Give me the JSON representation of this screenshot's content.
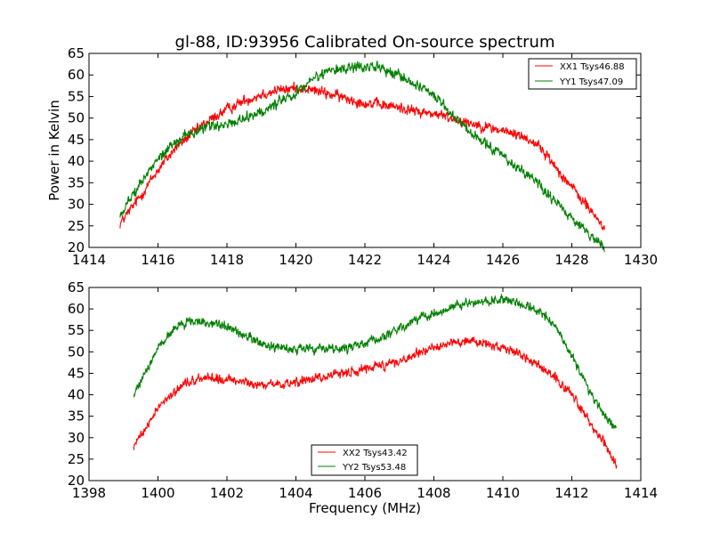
{
  "chart_data": [
    {
      "type": "line",
      "title": "gl-88, ID:93956 Calibrated On-source spectrum",
      "xlabel": "",
      "ylabel": "Power in Kelvin",
      "xlim": [
        1414,
        1430
      ],
      "ylim": [
        20,
        65
      ],
      "xticks": [
        1414,
        1416,
        1418,
        1420,
        1422,
        1424,
        1426,
        1428,
        1430
      ],
      "yticks": [
        20,
        25,
        30,
        35,
        40,
        45,
        50,
        55,
        60,
        65
      ],
      "legend": "top-right",
      "noise": 0.9,
      "series": [
        {
          "name": "XX1 Tsys46.88",
          "color": "#ff0000",
          "x": [
            1414.9,
            1415.5,
            1416.0,
            1416.5,
            1417.0,
            1417.5,
            1418.0,
            1418.5,
            1419.0,
            1419.5,
            1420.0,
            1420.5,
            1421.0,
            1421.5,
            1422.0,
            1422.5,
            1423.0,
            1423.5,
            1424.0,
            1424.5,
            1425.0,
            1425.5,
            1426.0,
            1426.5,
            1427.0,
            1427.5,
            1428.0,
            1428.5,
            1428.95
          ],
          "y": [
            25.5,
            32,
            38,
            43,
            46.5,
            49.5,
            52,
            54,
            55.5,
            56.5,
            57,
            56.5,
            55.5,
            54.5,
            53.5,
            53,
            52.5,
            51.5,
            51,
            50,
            49,
            48,
            47,
            46,
            44,
            39,
            34,
            29,
            24.5
          ]
        },
        {
          "name": "YY1 Tsys47.09",
          "color": "#008000",
          "x": [
            1414.9,
            1415.5,
            1416.0,
            1416.5,
            1417.0,
            1417.5,
            1418.0,
            1418.5,
            1419.0,
            1419.5,
            1420.0,
            1420.5,
            1421.0,
            1421.5,
            1422.0,
            1422.5,
            1423.0,
            1423.5,
            1424.0,
            1424.5,
            1425.0,
            1425.5,
            1426.0,
            1426.5,
            1427.0,
            1427.5,
            1428.0,
            1428.5,
            1428.95
          ],
          "y": [
            27.5,
            35,
            40.5,
            44.5,
            47,
            48,
            48.5,
            50,
            51.5,
            53.5,
            56,
            59,
            61,
            61.5,
            62,
            61.5,
            60,
            58,
            55,
            51,
            47,
            44,
            41,
            38,
            35,
            31,
            27,
            23,
            20
          ]
        }
      ]
    },
    {
      "type": "line",
      "title": "",
      "xlabel": "Frequency (MHz)",
      "ylabel": "",
      "xlim": [
        1398,
        1414
      ],
      "ylim": [
        20,
        65
      ],
      "xticks": [
        1398,
        1400,
        1402,
        1404,
        1406,
        1408,
        1410,
        1412,
        1414
      ],
      "yticks": [
        20,
        25,
        30,
        35,
        40,
        45,
        50,
        55,
        60,
        65
      ],
      "legend": "bottom-center",
      "noise": 0.8,
      "series": [
        {
          "name": "XX2 Tsys43.42",
          "color": "#ff0000",
          "x": [
            1399.3,
            1399.7,
            1400.0,
            1400.5,
            1401.0,
            1401.5,
            1402.0,
            1402.5,
            1403.0,
            1403.5,
            1404.0,
            1404.5,
            1405.0,
            1405.5,
            1406.0,
            1406.5,
            1407.0,
            1407.5,
            1408.0,
            1408.5,
            1409.0,
            1409.5,
            1410.0,
            1410.5,
            1411.0,
            1411.5,
            1412.0,
            1412.5,
            1413.0,
            1413.3
          ],
          "y": [
            28.5,
            33,
            37,
            41,
            43.5,
            44,
            43.5,
            43,
            42.5,
            42.5,
            43,
            43.5,
            44.5,
            45,
            46,
            47,
            48,
            49.5,
            51,
            52,
            52.5,
            52,
            51,
            49.5,
            47,
            44,
            40,
            34,
            28,
            23.5
          ]
        },
        {
          "name": "YY2 Tsys53.48",
          "color": "#008000",
          "x": [
            1399.3,
            1399.7,
            1400.0,
            1400.5,
            1401.0,
            1401.5,
            1402.0,
            1402.5,
            1403.0,
            1403.5,
            1404.0,
            1404.5,
            1405.0,
            1405.5,
            1406.0,
            1406.5,
            1407.0,
            1407.5,
            1408.0,
            1408.5,
            1409.0,
            1409.5,
            1410.0,
            1410.5,
            1411.0,
            1411.5,
            1412.0,
            1412.5,
            1413.0,
            1413.3
          ],
          "y": [
            40,
            46,
            51,
            55.5,
            57.5,
            57,
            56,
            54,
            52,
            51,
            50.5,
            50.5,
            51,
            51,
            52,
            53.5,
            55.5,
            57.5,
            59,
            60.5,
            61.5,
            62,
            62.5,
            61.5,
            60,
            56,
            49,
            41,
            34.5,
            32
          ]
        }
      ]
    }
  ]
}
